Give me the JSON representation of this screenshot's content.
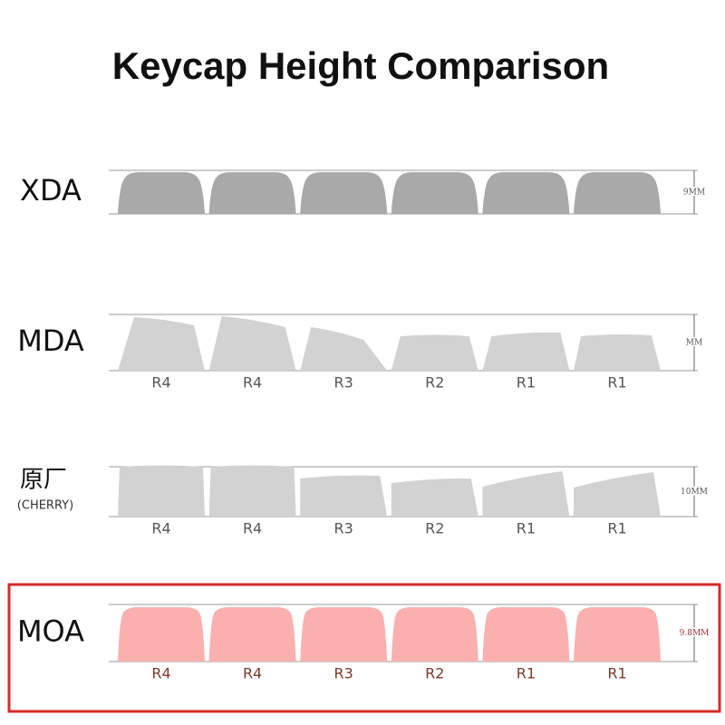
{
  "title": "Keycap Height Comparison",
  "rows": [
    {
      "name": "XDA",
      "measure": "9MM"
    },
    {
      "name": "MDA",
      "measure": "MM",
      "keys": [
        "R4",
        "R4",
        "R3",
        "R2",
        "R1",
        "R1"
      ]
    },
    {
      "name": "原厂",
      "subname": "(CHERRY)",
      "measure": "10MM",
      "keys": [
        "R4",
        "R4",
        "R3",
        "R2",
        "R1",
        "R1"
      ]
    },
    {
      "name": "MOA",
      "measure": "9.8MM",
      "keys": [
        "R4",
        "R4",
        "R3",
        "R2",
        "R1",
        "R1"
      ]
    }
  ]
}
